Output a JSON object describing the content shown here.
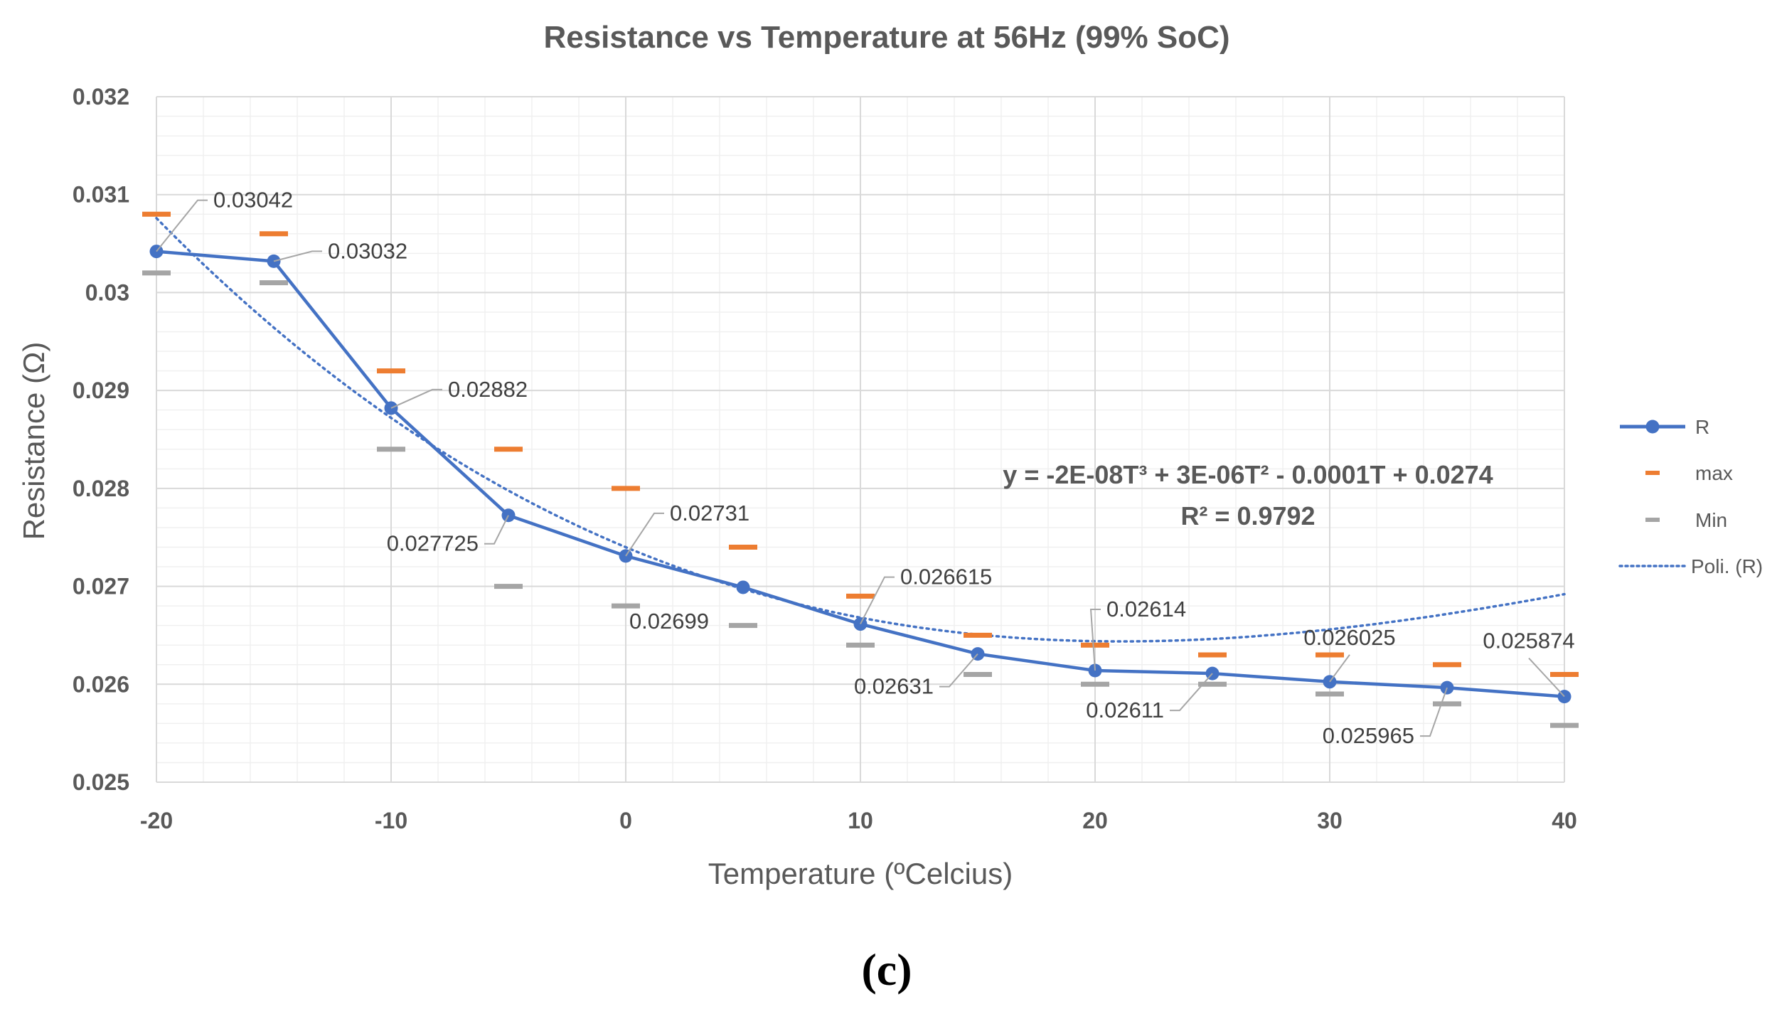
{
  "chart_data": {
    "type": "line",
    "title": "Resistance vs Temperature at 56Hz (99% SoC)",
    "xlabel": "Temperature (ºCelcius)",
    "ylabel": "Resistance (Ω)",
    "xlim": [
      -20,
      40
    ],
    "ylim": [
      0.025,
      0.032
    ],
    "x_ticks": [
      -20,
      -10,
      0,
      10,
      20,
      30,
      40
    ],
    "x_tick_labels": [
      "-20",
      "-10",
      "0",
      "10",
      "20",
      "30",
      "40"
    ],
    "y_ticks": [
      0.025,
      0.026,
      0.027,
      0.028,
      0.029,
      0.03,
      0.031,
      0.032
    ],
    "y_tick_labels": [
      "0.025",
      "0.026",
      "0.027",
      "0.028",
      "0.029",
      "0.03",
      "0.031",
      "0.032"
    ],
    "grid": true,
    "x": [
      -20,
      -15,
      -10,
      -5,
      0,
      5,
      10,
      15,
      20,
      25,
      30,
      35,
      40
    ],
    "series": [
      {
        "name": "R",
        "style": "line-marker",
        "color": "#4472C4",
        "values": [
          0.03042,
          0.03032,
          0.02882,
          0.027725,
          0.02731,
          0.02699,
          0.026615,
          0.02631,
          0.02614,
          0.02611,
          0.026025,
          0.025965,
          0.025874
        ]
      },
      {
        "name": "max",
        "style": "dash-marker",
        "color": "#ED7D31",
        "values": [
          0.0308,
          0.0306,
          0.0292,
          0.0284,
          0.028,
          0.0274,
          0.0269,
          0.0265,
          0.0264,
          0.0263,
          0.0263,
          0.0262,
          0.0261
        ]
      },
      {
        "name": "Min",
        "style": "dash-marker",
        "color": "#A5A5A5",
        "values": [
          0.0302,
          0.0301,
          0.0284,
          0.027,
          0.0268,
          0.0266,
          0.0264,
          0.0261,
          0.026,
          0.026,
          0.0259,
          0.0258,
          0.02558
        ]
      },
      {
        "name": "Poli. (R)",
        "style": "dotted-trendline",
        "color": "#4472C4",
        "coefficients": {
          "a3": -2e-08,
          "a2": 3e-06,
          "a1": -0.0001,
          "a0": 0.0274
        }
      }
    ],
    "data_labels": [
      "0.03042",
      "0.03032",
      "0.02882",
      "0.027725",
      "0.02731",
      "0.02699",
      "0.026615",
      "0.02631",
      "0.02614",
      "0.02611",
      "0.026025",
      "0.025965",
      "0.025874"
    ],
    "equation": "y = -2E-08T³ + 3E-06T² - 0.0001T + 0.0274",
    "r_squared": "R² = 0.9792",
    "legend_position": "right",
    "legend": [
      "R",
      "max",
      "Min",
      "Poli. (R)"
    ]
  },
  "caption": "(c)"
}
